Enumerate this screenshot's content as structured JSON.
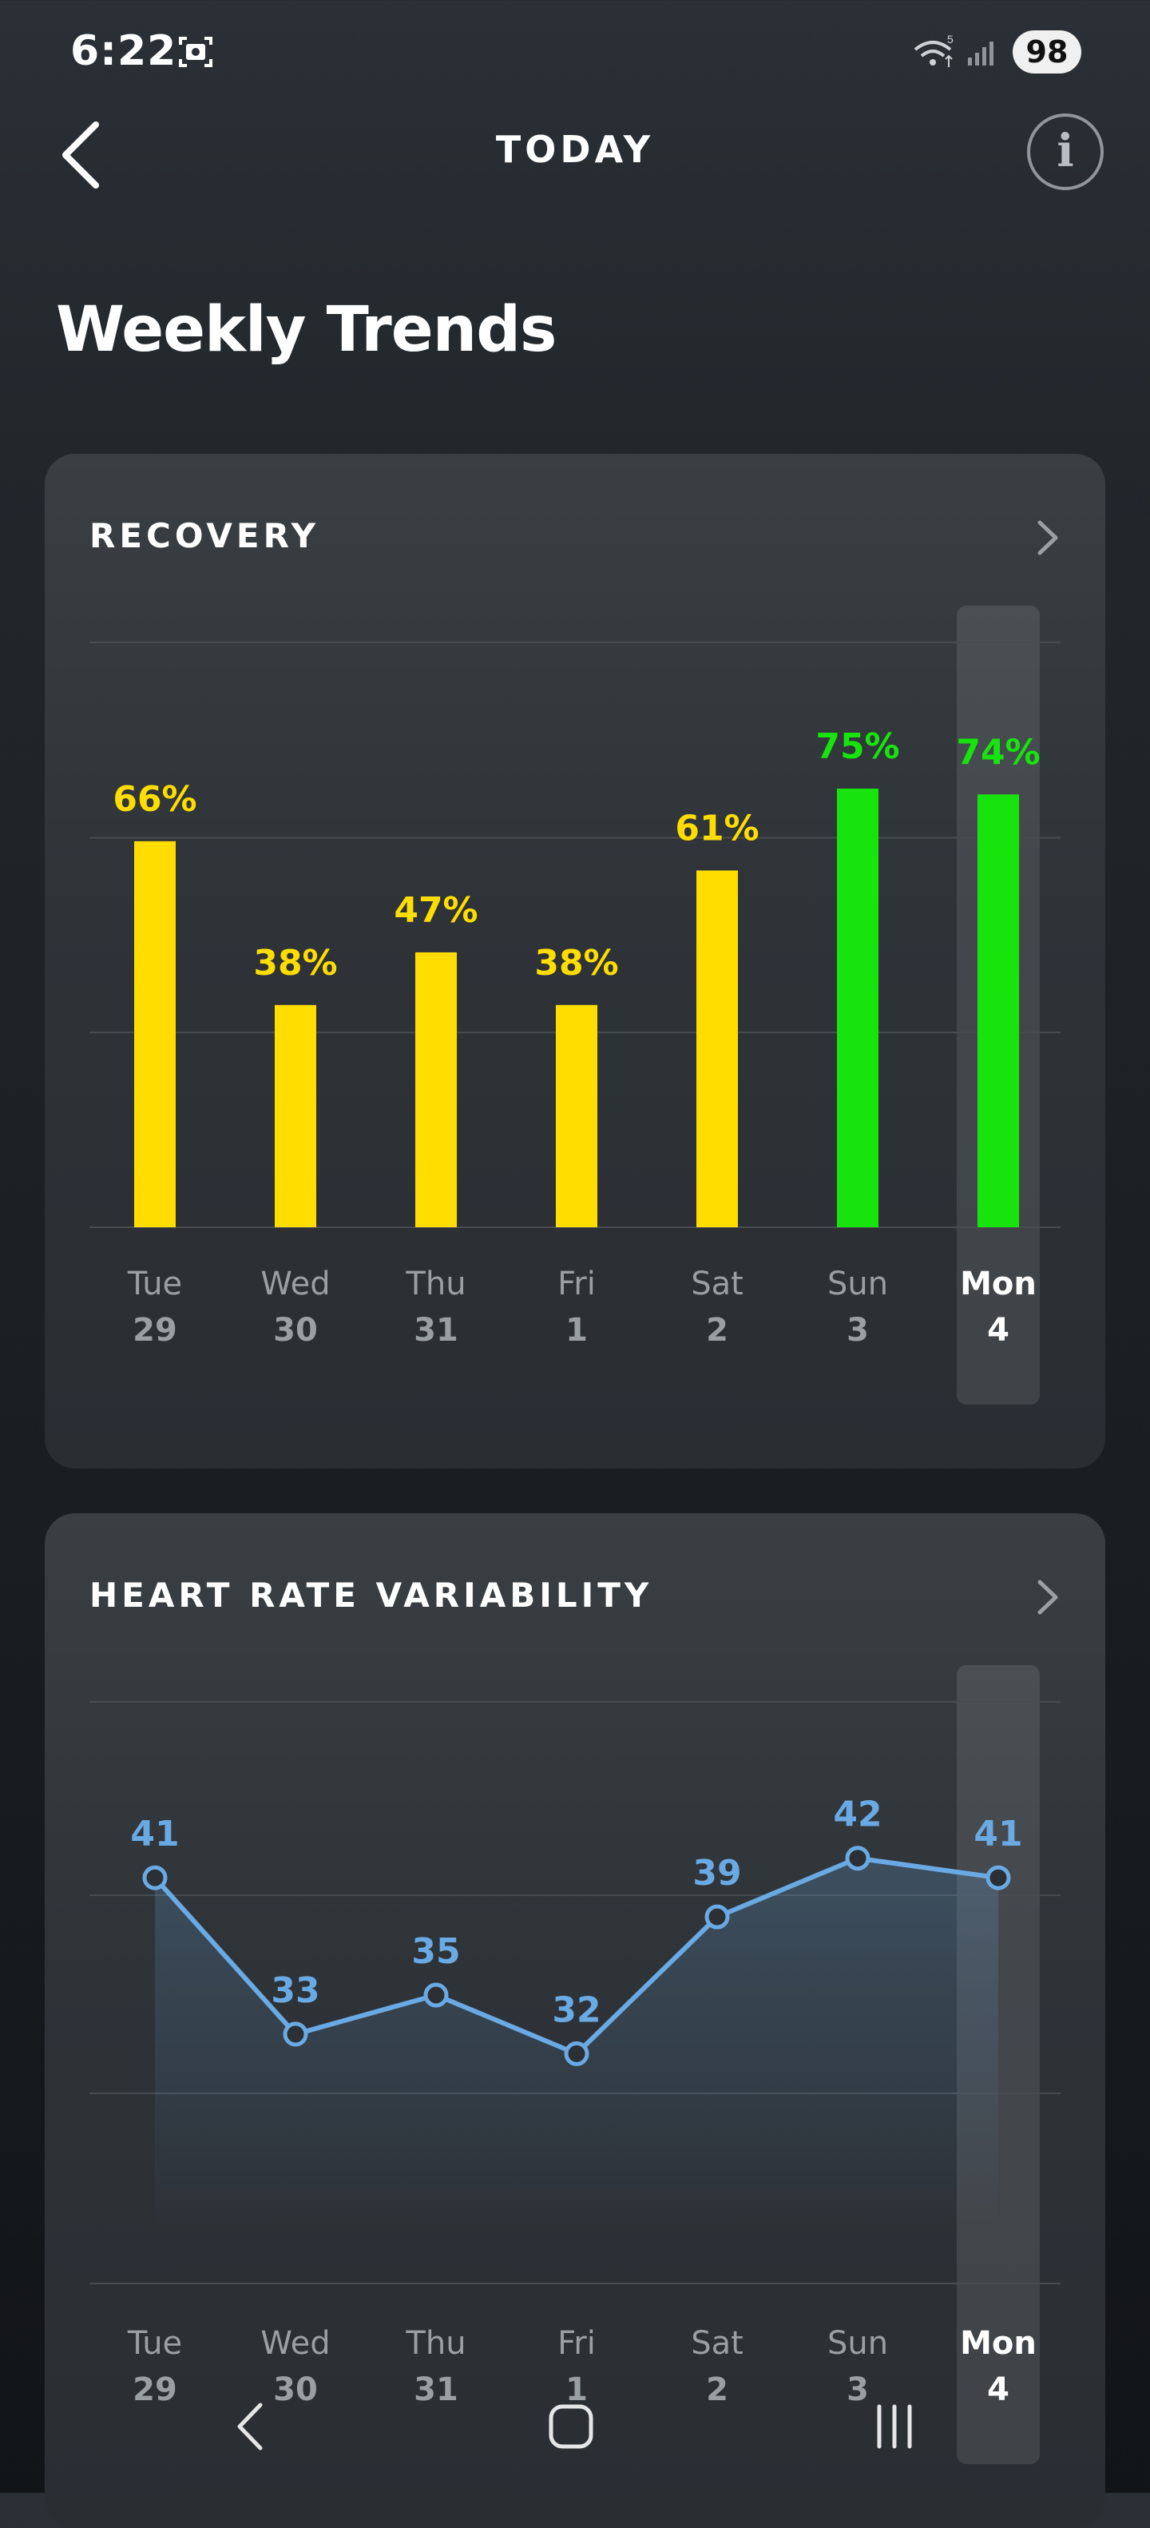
{
  "status_bar": {
    "time": "6:22",
    "battery": "98",
    "icons": [
      "screenshot-icon",
      "wifi-icon",
      "signal-icon"
    ]
  },
  "header": {
    "title": "TODAY",
    "back_icon": "chevron-left-icon",
    "info_icon": "info-icon",
    "info_glyph": "i"
  },
  "page_title": "Weekly Trends",
  "colors": {
    "yellow": "#ffdd00",
    "green": "#16e40c",
    "blue": "#6aaae4",
    "grid": "#474c51",
    "day_label": "#9a9fa4",
    "selected_label": "#ffffff"
  },
  "recovery": {
    "title": "RECOVERY",
    "chart_data": {
      "type": "bar",
      "categories": [
        "Tue 29",
        "Wed 30",
        "Thu 31",
        "Fri 1",
        "Sat 2",
        "Sun 3",
        "Mon 4"
      ],
      "days": [
        {
          "day": "Tue",
          "date": "29"
        },
        {
          "day": "Wed",
          "date": "30"
        },
        {
          "day": "Thu",
          "date": "31"
        },
        {
          "day": "Fri",
          "date": "1"
        },
        {
          "day": "Sat",
          "date": "2"
        },
        {
          "day": "Sun",
          "date": "3"
        },
        {
          "day": "Mon",
          "date": "4"
        }
      ],
      "values": [
        66,
        38,
        47,
        38,
        61,
        75,
        74
      ],
      "labels": [
        "66%",
        "38%",
        "47%",
        "38%",
        "61%",
        "75%",
        "74%"
      ],
      "bar_colors": [
        "yellow",
        "yellow",
        "yellow",
        "yellow",
        "yellow",
        "green",
        "green"
      ],
      "ylim": [
        0,
        100
      ],
      "grid": true,
      "selected_index": 6
    }
  },
  "hrv": {
    "title": "HEART RATE VARIABILITY",
    "chart_data": {
      "type": "line",
      "categories": [
        "Tue 29",
        "Wed 30",
        "Thu 31",
        "Fri 1",
        "Sat 2",
        "Sun 3",
        "Mon 4"
      ],
      "days": [
        {
          "day": "Tue",
          "date": "29"
        },
        {
          "day": "Wed",
          "date": "30"
        },
        {
          "day": "Thu",
          "date": "31"
        },
        {
          "day": "Fri",
          "date": "1"
        },
        {
          "day": "Sat",
          "date": "2"
        },
        {
          "day": "Sun",
          "date": "3"
        },
        {
          "day": "Mon",
          "date": "4"
        }
      ],
      "values": [
        41,
        33,
        35,
        32,
        39,
        42,
        41
      ],
      "labels": [
        "41",
        "33",
        "35",
        "32",
        "39",
        "42",
        "41"
      ],
      "ylim": [
        20,
        50
      ],
      "grid": true,
      "selected_index": 6
    }
  },
  "nav": {
    "back": "nav-back-icon",
    "home": "nav-home-icon",
    "recents": "nav-recents-icon"
  }
}
